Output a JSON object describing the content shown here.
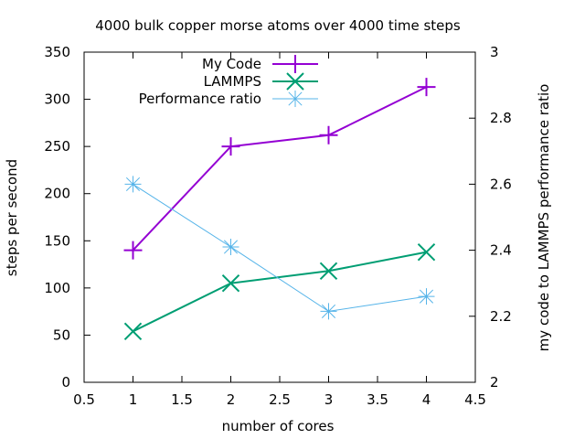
{
  "chart_data": {
    "type": "line",
    "title": "4000 bulk copper morse atoms over 4000 time steps",
    "xlabel": "number of cores",
    "ylabel": "steps per second",
    "y2label": "my code to LAMMPS performance ratio",
    "xlim": [
      0.5,
      4.5
    ],
    "ylim": [
      0,
      350
    ],
    "y2lim": [
      2,
      3
    ],
    "xticks": [
      "0.5",
      "1",
      "1.5",
      "2",
      "2.5",
      "3",
      "3.5",
      "4",
      "4.5"
    ],
    "yticks": [
      "0",
      "50",
      "100",
      "150",
      "200",
      "250",
      "300",
      "350"
    ],
    "y2ticks": [
      "2",
      "2.2",
      "2.4",
      "2.6",
      "2.8",
      "3"
    ],
    "grid": false,
    "legend_position": "top-center",
    "x": [
      1,
      2,
      3,
      4
    ],
    "series": [
      {
        "name": "My Code",
        "axis": "y1",
        "values": [
          140,
          250,
          262,
          313
        ],
        "color": "#9400d3",
        "marker": "plus"
      },
      {
        "name": "LAMMPS",
        "axis": "y1",
        "values": [
          54,
          105,
          118,
          138
        ],
        "color": "#009e73",
        "marker": "cross"
      },
      {
        "name": "Performance ratio",
        "axis": "y2",
        "values": [
          2.6,
          2.41,
          2.215,
          2.26
        ],
        "color": "#56b4e9",
        "marker": "star"
      }
    ]
  }
}
